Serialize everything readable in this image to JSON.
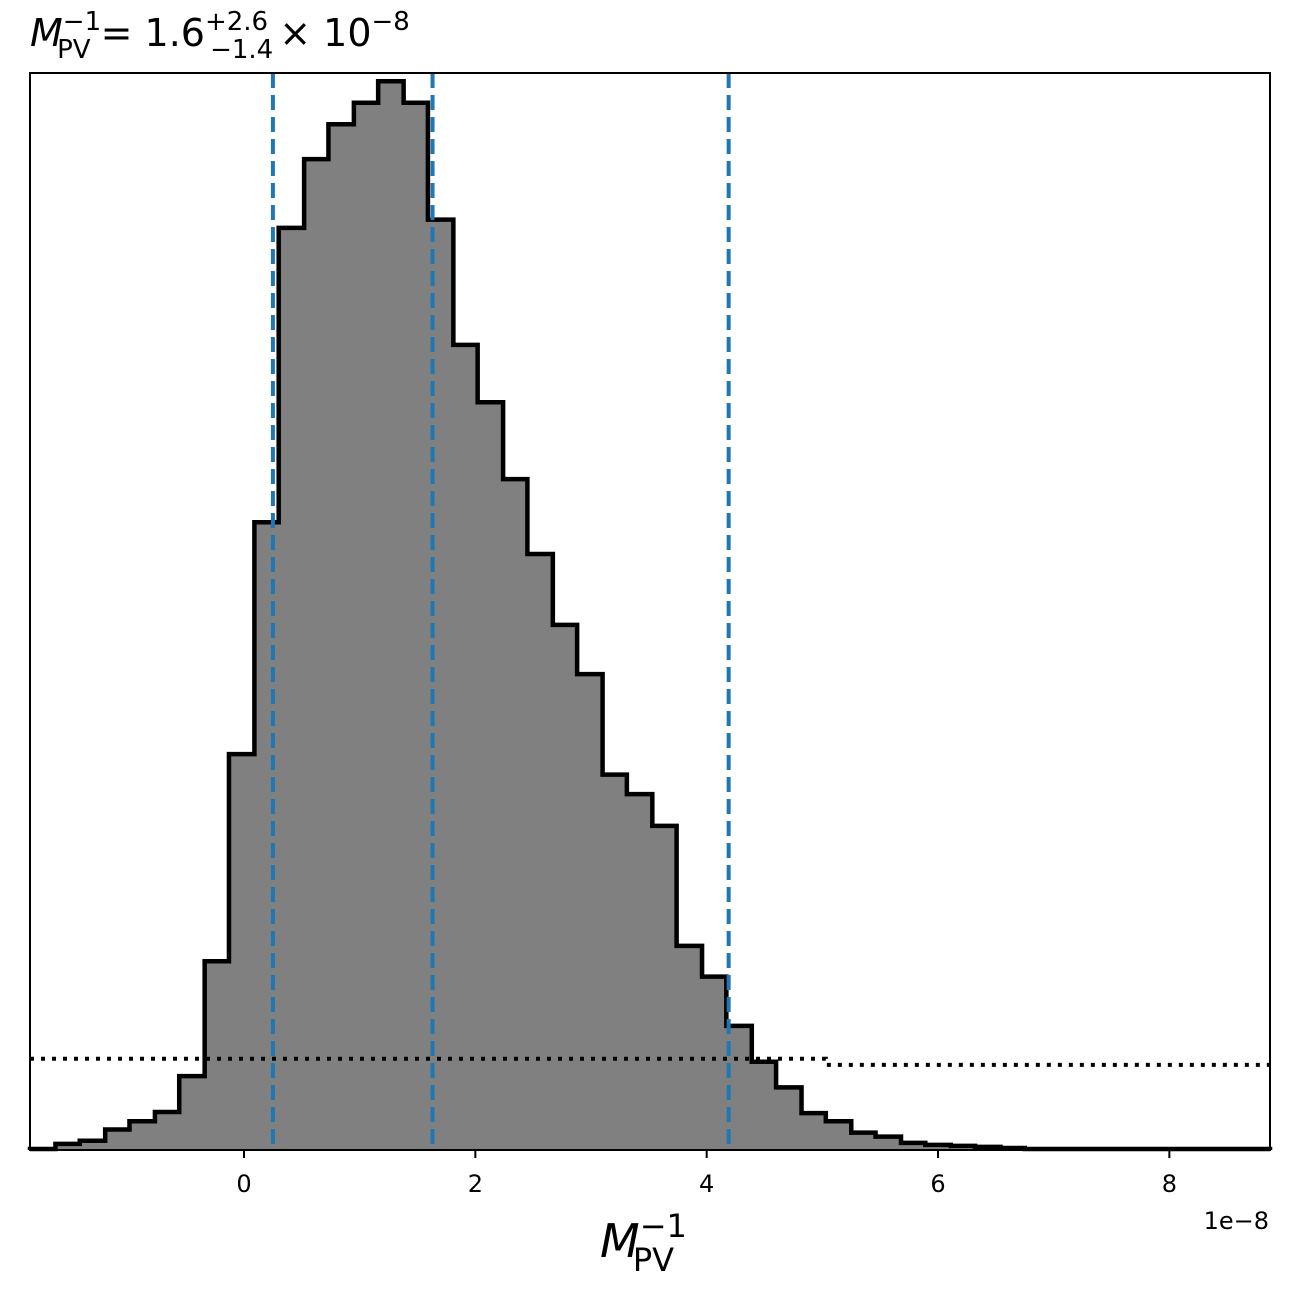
{
  "chart_data": {
    "type": "bar",
    "title": {
      "symbol": "M",
      "symbol_sup": "−1",
      "symbol_sub": "PV",
      "equals": "= 1.6",
      "upper_err": "+2.6",
      "lower_err": "−1.4",
      "times": "× 10",
      "exponent": "−8"
    },
    "xlabel": {
      "symbol": "M",
      "sup": "−1",
      "sub": "PV"
    },
    "ylabel": "",
    "x_offset_label": "1e−8",
    "xlim": [
      -1.85,
      8.87
    ],
    "ylim": [
      0,
      1.05
    ],
    "x_ticks": [
      0,
      2,
      4,
      6,
      8
    ],
    "x_tick_labels": [
      "0",
      "2",
      "4",
      "6",
      "8"
    ],
    "y_ticks_visible": false,
    "grid": false,
    "bin_edges": [
      -1.85,
      -1.63,
      -1.42,
      -1.2,
      -0.99,
      -0.77,
      -0.56,
      -0.34,
      -0.13,
      0.09,
      0.3,
      0.52,
      0.73,
      0.95,
      1.16,
      1.38,
      1.59,
      1.81,
      2.02,
      2.24,
      2.45,
      2.67,
      2.88,
      3.1,
      3.31,
      3.53,
      3.74,
      3.96,
      4.17,
      4.39,
      4.6,
      4.82,
      5.03,
      5.25,
      5.46,
      5.68,
      5.89,
      6.11,
      6.32,
      6.54,
      6.75,
      6.97,
      7.18,
      7.4,
      7.61,
      7.83,
      8.04,
      8.26,
      8.47,
      8.69,
      8.87
    ],
    "counts": [
      0.001,
      0.006,
      0.009,
      0.02,
      0.028,
      0.037,
      0.072,
      0.184,
      0.386,
      0.612,
      0.899,
      0.966,
      1.0,
      1.021,
      1.042,
      1.021,
      0.907,
      0.785,
      0.729,
      0.654,
      0.581,
      0.512,
      0.464,
      0.366,
      0.347,
      0.316,
      0.199,
      0.169,
      0.121,
      0.086,
      0.061,
      0.036,
      0.028,
      0.017,
      0.013,
      0.007,
      0.005,
      0.004,
      0.003,
      0.002,
      0.001,
      0.001,
      0.001,
      0.001,
      0.001,
      0.001,
      0.001,
      0.001,
      0.001,
      0.001
    ],
    "fill_color": "#808080",
    "edge_color": "#000000",
    "quantile_lines": {
      "values": [
        0.25,
        1.63,
        4.19
      ],
      "color": "#1f77b4",
      "style": "dashed"
    },
    "reference_line": {
      "x": [
        -1.85,
        5.03,
        5.03,
        8.87
      ],
      "y": [
        0.089,
        0.089,
        0.083,
        0.083
      ],
      "color": "#000000",
      "style": "dotted"
    }
  }
}
